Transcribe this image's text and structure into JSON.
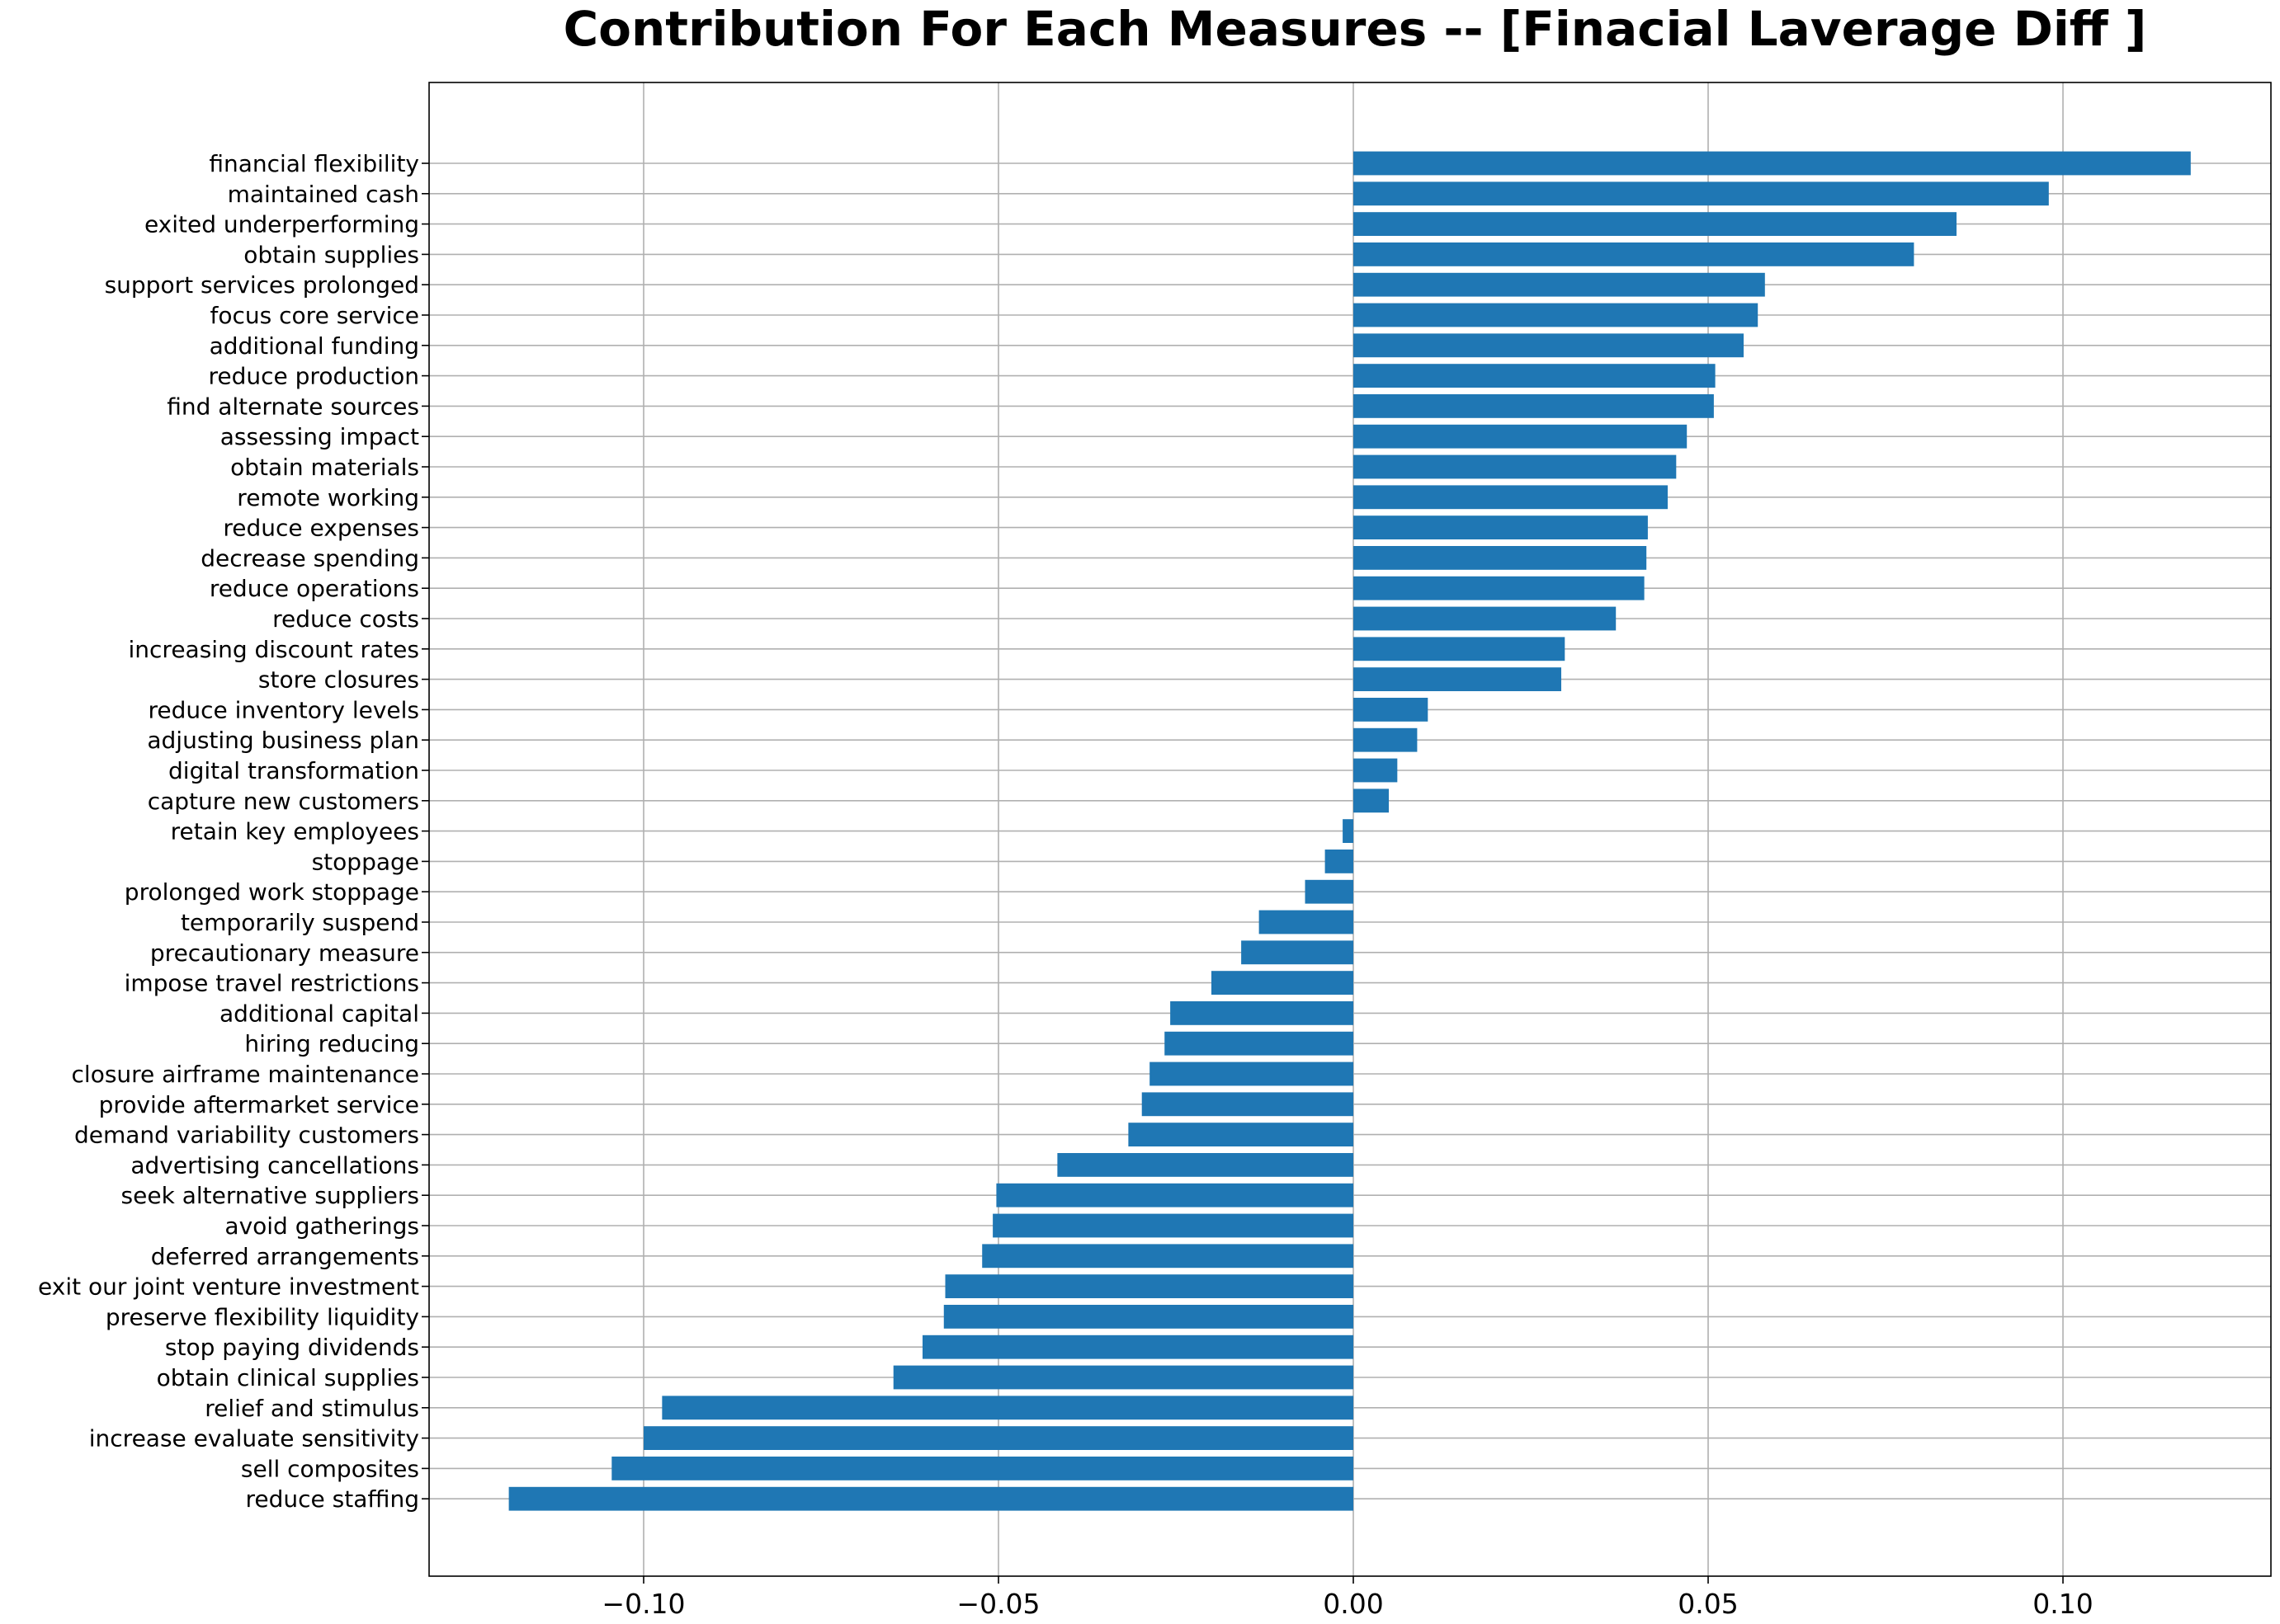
{
  "chart_data": {
    "type": "bar",
    "orientation": "horizontal",
    "title": "Contribution For Each Measures -- [Finacial Laverage Diff ]",
    "xlabel": "",
    "ylabel": "",
    "xlim": [
      -0.13,
      0.13
    ],
    "xticks": [
      -0.1,
      -0.05,
      0.0,
      0.05,
      0.1
    ],
    "xtick_labels": [
      "−0.10",
      "−0.05",
      "0.00",
      "0.05",
      "0.10"
    ],
    "grid": true,
    "colors": {
      "bar": "#1f77b4",
      "grid": "#b0b0b0"
    },
    "categories": [
      "financial flexibility",
      "maintained cash",
      "exited underperforming",
      "obtain supplies",
      "support services prolonged",
      "focus core service",
      "additional funding",
      "reduce production",
      "find alternate sources",
      "assessing impact",
      "obtain materials",
      "remote working",
      "reduce expenses",
      "decrease spending",
      "reduce operations",
      "reduce costs",
      "increasing discount rates",
      "store closures",
      "reduce inventory levels",
      "adjusting business plan",
      "digital transformation",
      "capture new customers",
      "retain key employees",
      "stoppage",
      "prolonged work stoppage",
      "temporarily suspend",
      "precautionary measure",
      "impose travel restrictions",
      "additional capital",
      "hiring reducing",
      "closure airframe maintenance",
      "provide aftermarket service",
      "demand variability customers",
      "advertising cancellations",
      "seek alternative suppliers",
      "avoid gatherings",
      "deferred arrangements",
      "exit our joint venture investment",
      "preserve flexibility liquidity",
      "stop paying dividends",
      "obtain clinical supplies",
      "relief and stimulus",
      "increase evaluate sensitivity",
      "sell composites",
      "reduce staffing"
    ],
    "values": [
      0.118,
      0.098,
      0.085,
      0.079,
      0.058,
      0.057,
      0.055,
      0.051,
      0.0508,
      0.047,
      0.0455,
      0.0443,
      0.0415,
      0.0413,
      0.041,
      0.037,
      0.0298,
      0.0293,
      0.0105,
      0.009,
      0.0062,
      0.005,
      -0.0015,
      -0.004,
      -0.0068,
      -0.0133,
      -0.0158,
      -0.02,
      -0.0258,
      -0.0266,
      -0.0287,
      -0.0298,
      -0.0317,
      -0.0417,
      -0.0503,
      -0.0508,
      -0.0523,
      -0.0575,
      -0.0577,
      -0.0607,
      -0.0648,
      -0.0974,
      -0.1,
      -0.1045,
      -0.119
    ]
  }
}
